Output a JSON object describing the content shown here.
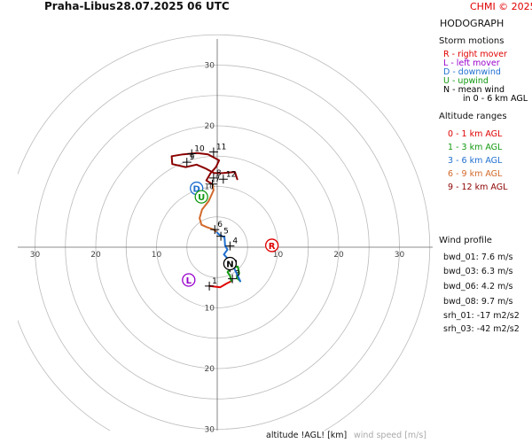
{
  "header": {
    "station": "Praha-Libus",
    "datetime": "28.07.2025 06 UTC",
    "copyright": "CHMI © 2025"
  },
  "panel": {
    "title": "HODOGRAPH",
    "storm_title": "Storm motions",
    "storm_items": [
      {
        "text": "R - right mover",
        "color": "#e00000"
      },
      {
        "text": "L - left mover",
        "color": "#9900cc"
      },
      {
        "text": "D - downwind",
        "color": "#1f6fd0"
      },
      {
        "text": "U - upwind",
        "color": "#119911"
      },
      {
        "text": "N - mean wind",
        "color": "#000000"
      },
      {
        "text": "in 0 - 6 km AGL",
        "color": "#000000"
      }
    ],
    "alt_title": "Altitude ranges",
    "alt_items": [
      {
        "text": "0 - 1 km AGL",
        "color": "#e00000"
      },
      {
        "text": "1 - 3 km AGL",
        "color": "#119911"
      },
      {
        "text": "3 - 6 km AGL",
        "color": "#1f6fd0"
      },
      {
        "text": "6 - 9 km AGL",
        "color": "#d2692a"
      },
      {
        "text": "9 - 12 km AGL",
        "color": "#8b0000"
      }
    ],
    "profile_title": "Wind profile",
    "profile_items": [
      "bwd_01: 7.6 m/s",
      "bwd_03: 6.3 m/s",
      "bwd_06: 4.2 m/s",
      "bwd_08: 9.7 m/s",
      "srh_01: -17 m2/s2",
      "srh_03: -42 m2/s2"
    ]
  },
  "footer": {
    "altitude_label": "altitude !AGL! [km]",
    "speed_label": "wind speed [m/s]"
  },
  "chart_data": {
    "type": "hodograph",
    "units": "m/s",
    "rings": [
      5,
      10,
      15,
      20,
      25,
      30,
      35
    ],
    "tick_labels": {
      "left": [
        "30",
        "20",
        "10"
      ],
      "right": [
        "10",
        "20",
        "30"
      ],
      "up": [
        "30",
        "20",
        "10"
      ],
      "down": [
        "10",
        "20",
        "30"
      ]
    },
    "segments": [
      {
        "range": "0-1 km",
        "color": "#e00000",
        "points": [
          [
            -1.3,
            -6.4
          ],
          [
            0.5,
            -6.6
          ],
          [
            1.5,
            -6.0
          ],
          [
            2.3,
            -5.6
          ]
        ]
      },
      {
        "range": "1-3 km",
        "color": "#119911",
        "points": [
          [
            2.3,
            -5.6
          ],
          [
            2.1,
            -4.7
          ],
          [
            1.7,
            -4.1
          ],
          [
            2.3,
            -3.4
          ],
          [
            3.4,
            -3.2
          ],
          [
            3.6,
            -4.3
          ],
          [
            3.2,
            -5.0
          ],
          [
            3.8,
            -5.6
          ]
        ]
      },
      {
        "range": "3-6 km",
        "color": "#1f6fd0",
        "points": [
          [
            3.8,
            -5.6
          ],
          [
            2.4,
            -2.6
          ],
          [
            1.1,
            -1.2
          ],
          [
            1.7,
            -0.4
          ],
          [
            1.3,
            0.2
          ],
          [
            1.2,
            1.6
          ],
          [
            0.3,
            2.1
          ],
          [
            -0.2,
            2.6
          ]
        ]
      },
      {
        "range": "6-9 km",
        "color": "#d2692a",
        "points": [
          [
            -0.2,
            2.6
          ],
          [
            -0.6,
            2.9
          ],
          [
            -1.7,
            3.3
          ],
          [
            -2.6,
            3.7
          ],
          [
            -2.9,
            4.8
          ],
          [
            -2.5,
            6.2
          ],
          [
            -1.4,
            7.6
          ],
          [
            -0.6,
            9.4
          ],
          [
            -0.8,
            10.4
          ]
        ]
      },
      {
        "range": "9-12 km",
        "color": "#8b0000",
        "points": [
          [
            -0.8,
            10.4
          ],
          [
            -1.8,
            11.0
          ],
          [
            -1.1,
            12.2
          ],
          [
            -0.2,
            13.2
          ],
          [
            0.3,
            14.3
          ],
          [
            -1.5,
            15.3
          ],
          [
            -3.3,
            15.5
          ],
          [
            -5.6,
            15.3
          ],
          [
            -7.5,
            15.0
          ],
          [
            -7.4,
            13.7
          ],
          [
            -5.2,
            13.2
          ],
          [
            -3.4,
            13.6
          ],
          [
            -2.0,
            13.0
          ],
          [
            -0.5,
            12.2
          ],
          [
            0.9,
            12.2
          ],
          [
            2.9,
            12.4
          ],
          [
            3.3,
            11.2
          ]
        ]
      }
    ],
    "altitude_marks": [
      {
        "label": "1",
        "u": -1.3,
        "v": -6.4
      },
      {
        "label": "2",
        "u": 2.1,
        "v": -3.4
      },
      {
        "label": "3",
        "u": 2.5,
        "v": -5.2
      },
      {
        "label": "4",
        "u": 2.1,
        "v": 0.2
      },
      {
        "label": "5",
        "u": 0.6,
        "v": 1.8
      },
      {
        "label": "6",
        "u": -0.4,
        "v": 2.9
      },
      {
        "label": "7",
        "u": -0.8,
        "v": 10.4
      },
      {
        "label": "8",
        "u": -0.6,
        "v": 11.4
      },
      {
        "label": "9",
        "u": -5.0,
        "v": 14.0
      },
      {
        "label": "10",
        "u": -4.2,
        "v": 15.4
      },
      {
        "label": "11",
        "u": -0.6,
        "v": 15.7
      },
      {
        "label": "12",
        "u": 1.0,
        "v": 11.2
      }
    ],
    "storm_markers": [
      {
        "label": "R",
        "u": 9.0,
        "v": 0.3,
        "color": "#e00000"
      },
      {
        "label": "L",
        "u": -4.7,
        "v": -5.4,
        "color": "#9900cc"
      },
      {
        "label": "D",
        "u": -3.4,
        "v": 9.7,
        "color": "#1f6fd0"
      },
      {
        "label": "U",
        "u": -2.6,
        "v": 8.3,
        "color": "#119911"
      },
      {
        "label": "N",
        "u": 2.1,
        "v": -2.7,
        "color": "#000000"
      }
    ]
  }
}
